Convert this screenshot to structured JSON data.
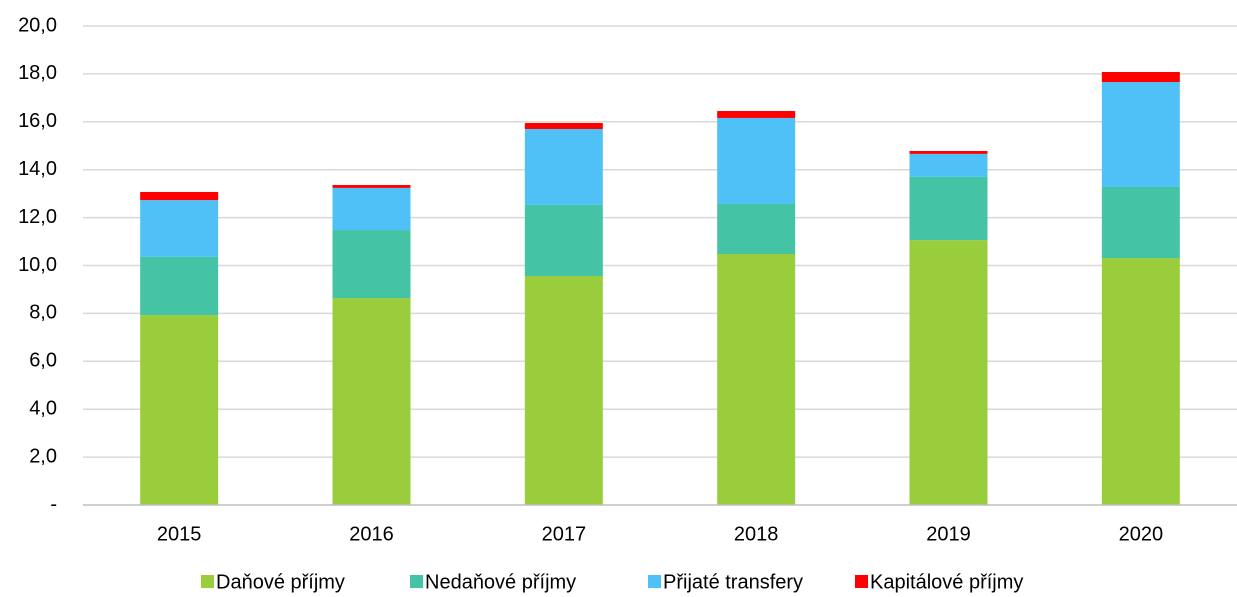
{
  "chart_data": {
    "type": "stacked_bar",
    "categories": [
      "2015",
      "2016",
      "2017",
      "2018",
      "2019",
      "2020"
    ],
    "series": [
      {
        "name": "Daňové příjmy",
        "color": "#9acd3c",
        "values": [
          7.93,
          8.64,
          9.56,
          10.48,
          11.06,
          10.31
        ]
      },
      {
        "name": "Nedaňové příjmy",
        "color": "#45c3a5",
        "values": [
          2.43,
          2.84,
          2.97,
          2.09,
          2.64,
          2.97
        ]
      },
      {
        "name": "Přijaté transfery",
        "color": "#50c1f6",
        "values": [
          2.37,
          1.76,
          3.17,
          3.59,
          0.96,
          4.38
        ]
      },
      {
        "name": "Kapitálové příjmy",
        "color": "#ff0000",
        "values": [
          0.34,
          0.12,
          0.25,
          0.29,
          0.12,
          0.42
        ]
      }
    ],
    "ylim": [
      0,
      20
    ],
    "yticks": [
      {
        "value": 0,
        "label": "-"
      },
      {
        "value": 2,
        "label": "2,0"
      },
      {
        "value": 4,
        "label": "4,0"
      },
      {
        "value": 6,
        "label": "6,0"
      },
      {
        "value": 8,
        "label": "8,0"
      },
      {
        "value": 10,
        "label": "10,0"
      },
      {
        "value": 12,
        "label": "12,0"
      },
      {
        "value": 14,
        "label": "14,0"
      },
      {
        "value": 16,
        "label": "16,0"
      },
      {
        "value": 18,
        "label": "18,0"
      },
      {
        "value": 20,
        "label": "20,0"
      }
    ],
    "grid": true
  }
}
